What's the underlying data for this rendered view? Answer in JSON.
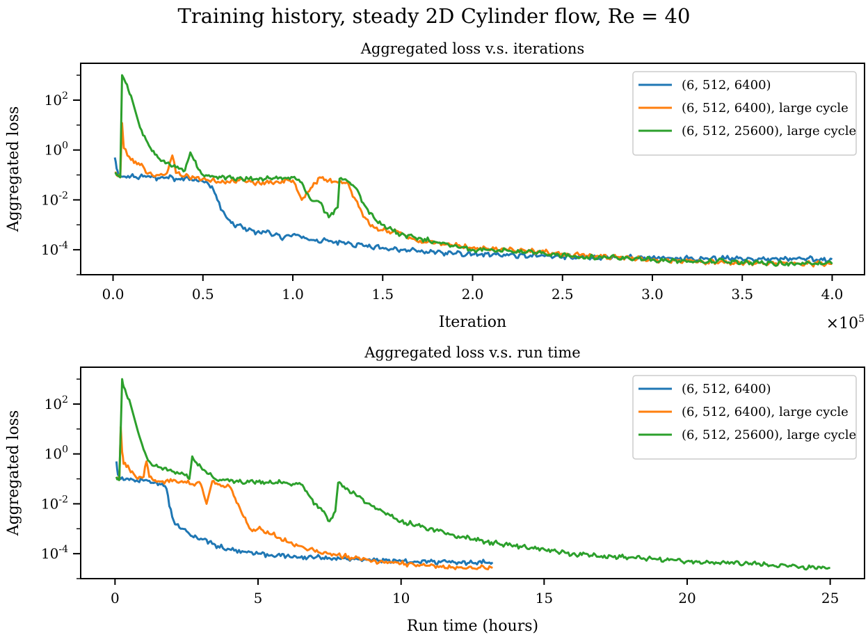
{
  "suptitle": "Training history, steady 2D Cylinder flow, Re = 40",
  "chart_data": [
    {
      "type": "line",
      "title": "Aggregated loss v.s. iterations",
      "xlabel": "Iteration",
      "ylabel": "Aggregated loss",
      "x_multiplier_label": "×10^5",
      "xscale": "linear",
      "yscale": "log",
      "xlim": [
        -18000,
        418000
      ],
      "ylim": [
        1e-05,
        3000
      ],
      "xticks": [
        0,
        50000,
        100000,
        150000,
        200000,
        250000,
        300000,
        350000,
        400000
      ],
      "xtick_labels": [
        "0.0",
        "0.5",
        "1.0",
        "1.5",
        "2.0",
        "2.5",
        "3.0",
        "3.5",
        "4.0"
      ],
      "yticks": [
        0.0001,
        0.01,
        1,
        100
      ],
      "ytick_labels": [
        "10^-4",
        "10^-2",
        "10^0",
        "10^2"
      ],
      "grid": false,
      "legend_position": "top-right",
      "series": [
        {
          "name": "(6, 512, 6400)",
          "color": "#1f77b4",
          "x": [
            1000,
            2000,
            3000,
            5000,
            10000,
            15000,
            20000,
            25000,
            30000,
            35000,
            40000,
            45000,
            50000,
            55000,
            58000,
            60000,
            63000,
            65000,
            68000,
            70000,
            75000,
            80000,
            85000,
            90000,
            95000,
            100000,
            110000,
            120000,
            130000,
            140000,
            150000,
            160000,
            170000,
            180000,
            190000,
            200000,
            220000,
            240000,
            260000,
            280000,
            300000,
            320000,
            340000,
            360000,
            380000,
            400000
          ],
          "y": [
            0.5,
            0.18,
            0.1,
            0.085,
            0.09,
            0.085,
            0.09,
            0.075,
            0.08,
            0.07,
            0.075,
            0.06,
            0.055,
            0.035,
            0.01,
            0.004,
            0.002,
            0.0015,
            0.0008,
            0.001,
            0.0006,
            0.0005,
            0.0005,
            0.0004,
            0.0003,
            0.0004,
            0.00025,
            0.00022,
            0.00018,
            0.00014,
            0.00012,
            0.0001,
            9e-05,
            8e-05,
            7e-05,
            6.5e-05,
            6e-05,
            5.5e-05,
            5e-05,
            5e-05,
            4.8e-05,
            4.5e-05,
            4.5e-05,
            4.4e-05,
            4.3e-05,
            4.2e-05
          ]
        },
        {
          "name": "(6, 512, 6400), large cycle",
          "color": "#ff7f0e",
          "x": [
            1000,
            2000,
            3000,
            4000,
            5000,
            6000,
            8000,
            10000,
            15000,
            20000,
            25000,
            30000,
            33000,
            35000,
            40000,
            45000,
            50000,
            60000,
            70000,
            80000,
            90000,
            100000,
            103000,
            105000,
            110000,
            115000,
            120000,
            125000,
            130000,
            135000,
            140000,
            145000,
            150000,
            160000,
            170000,
            180000,
            190000,
            200000,
            220000,
            240000,
            260000,
            280000,
            300000,
            320000,
            340000,
            360000,
            380000,
            400000
          ],
          "y": [
            0.12,
            0.1,
            0.09,
            0.08,
            12,
            1.2,
            0.6,
            0.4,
            0.25,
            0.12,
            0.1,
            0.12,
            0.6,
            0.12,
            0.09,
            0.08,
            0.07,
            0.05,
            0.06,
            0.05,
            0.05,
            0.06,
            0.02,
            0.01,
            0.03,
            0.08,
            0.06,
            0.05,
            0.05,
            0.01,
            0.002,
            0.0008,
            0.0006,
            0.0005,
            0.0002,
            0.0002,
            0.00015,
            0.00012,
            0.0001,
            8e-05,
            6e-05,
            5e-05,
            4e-05,
            3.5e-05,
            3e-05,
            3e-05,
            2.8e-05,
            2.7e-05
          ]
        },
        {
          "name": "(6, 512, 25600), large cycle",
          "color": "#2ca02c",
          "x": [
            1000,
            2000,
            3000,
            4000,
            5000,
            7000,
            10000,
            15000,
            20000,
            25000,
            30000,
            35000,
            40000,
            43000,
            45000,
            50000,
            60000,
            70000,
            80000,
            90000,
            100000,
            105000,
            110000,
            115000,
            120000,
            125000,
            126000,
            130000,
            135000,
            140000,
            145000,
            150000,
            160000,
            170000,
            180000,
            190000,
            200000,
            220000,
            240000,
            260000,
            280000,
            300000,
            320000,
            340000,
            360000,
            380000,
            400000
          ],
          "y": [
            0.12,
            0.1,
            0.09,
            0.08,
            1000,
            500,
            150,
            8,
            1.5,
            0.5,
            0.3,
            0.2,
            0.15,
            0.8,
            0.4,
            0.1,
            0.08,
            0.075,
            0.07,
            0.075,
            0.08,
            0.05,
            0.01,
            0.008,
            0.002,
            0.005,
            0.07,
            0.06,
            0.03,
            0.006,
            0.002,
            0.001,
            0.0004,
            0.0003,
            0.0002,
            0.00015,
            0.0001,
            9e-05,
            7e-05,
            5e-05,
            5e-05,
            4e-05,
            3.5e-05,
            3.5e-05,
            3e-05,
            2.8e-05,
            2.7e-05
          ]
        }
      ]
    },
    {
      "type": "line",
      "title": "Aggregated loss v.s. run time",
      "xlabel": "Run time (hours)",
      "ylabel": "Aggregated loss",
      "xscale": "linear",
      "yscale": "log",
      "xlim": [
        -1.2,
        26.2
      ],
      "ylim": [
        1e-05,
        3000
      ],
      "xticks": [
        0,
        5,
        10,
        15,
        20,
        25
      ],
      "xtick_labels": [
        "0",
        "5",
        "10",
        "15",
        "20",
        "25"
      ],
      "yticks": [
        0.0001,
        0.01,
        1,
        100
      ],
      "ytick_labels": [
        "10^-4",
        "10^-2",
        "10^0",
        "10^2"
      ],
      "grid": false,
      "legend_position": "top-right",
      "series": [
        {
          "name": "(6, 512, 6400)",
          "color": "#1f77b4",
          "x": [
            0.05,
            0.1,
            0.2,
            0.3,
            0.5,
            0.8,
            1.0,
            1.3,
            1.6,
            1.8,
            1.9,
            2.0,
            2.1,
            2.3,
            2.5,
            2.7,
            3.0,
            3.3,
            3.6,
            4.0,
            4.5,
            5.0,
            6.0,
            7.0,
            8.0,
            9.0,
            10.0,
            11.0,
            12.0,
            13.2
          ],
          "y": [
            0.5,
            0.15,
            0.1,
            0.09,
            0.09,
            0.08,
            0.085,
            0.07,
            0.06,
            0.04,
            0.008,
            0.003,
            0.0015,
            0.001,
            0.0008,
            0.0005,
            0.0004,
            0.0003,
            0.0002,
            0.00015,
            0.00012,
            0.0001,
            8e-05,
            7e-05,
            6.5e-05,
            5.5e-05,
            5e-05,
            4.8e-05,
            4.5e-05,
            4.5e-05
          ]
        },
        {
          "name": "(6, 512, 6400), large cycle",
          "color": "#ff7f0e",
          "x": [
            0.05,
            0.1,
            0.15,
            0.2,
            0.25,
            0.3,
            0.4,
            0.6,
            0.8,
            1.0,
            1.1,
            1.2,
            1.5,
            2.0,
            2.5,
            3.0,
            3.2,
            3.4,
            3.6,
            4.0,
            4.3,
            4.5,
            4.8,
            5.0,
            5.5,
            6.0,
            6.5,
            7.0,
            8.0,
            9.0,
            10.0,
            11.0,
            12.0,
            13.2
          ],
          "y": [
            0.12,
            0.1,
            0.09,
            12,
            1.2,
            0.4,
            0.3,
            0.2,
            0.1,
            0.12,
            0.5,
            0.12,
            0.08,
            0.08,
            0.07,
            0.06,
            0.01,
            0.08,
            0.06,
            0.05,
            0.01,
            0.003,
            0.0008,
            0.001,
            0.0006,
            0.0003,
            0.0002,
            0.00012,
            8e-05,
            5e-05,
            4e-05,
            3.3e-05,
            2.8e-05,
            2.7e-05
          ]
        },
        {
          "name": "(6, 512, 25600), large cycle",
          "color": "#2ca02c",
          "x": [
            0.05,
            0.1,
            0.15,
            0.25,
            0.3,
            0.5,
            0.8,
            1.0,
            1.2,
            1.5,
            2.0,
            2.5,
            2.6,
            2.7,
            3.0,
            3.5,
            4.0,
            5.0,
            6.0,
            6.5,
            6.8,
            7.0,
            7.3,
            7.5,
            7.7,
            7.8,
            8.0,
            8.5,
            9.0,
            10.0,
            11.0,
            12.0,
            13.0,
            14.0,
            15.0,
            16.0,
            17.0,
            18.0,
            19.0,
            20.0,
            21.0,
            22.0,
            23.0,
            24.0,
            25.0
          ],
          "y": [
            0.12,
            0.1,
            0.09,
            1000,
            500,
            150,
            8,
            1.5,
            0.5,
            0.3,
            0.2,
            0.15,
            0.1,
            0.8,
            0.3,
            0.1,
            0.08,
            0.075,
            0.07,
            0.06,
            0.02,
            0.01,
            0.005,
            0.002,
            0.005,
            0.07,
            0.05,
            0.02,
            0.008,
            0.002,
            0.001,
            0.0005,
            0.0003,
            0.0002,
            0.00015,
            0.0001,
            8e-05,
            7e-05,
            6e-05,
            5e-05,
            4.5e-05,
            4e-05,
            3.5e-05,
            3e-05,
            2.7e-05
          ]
        }
      ]
    }
  ]
}
